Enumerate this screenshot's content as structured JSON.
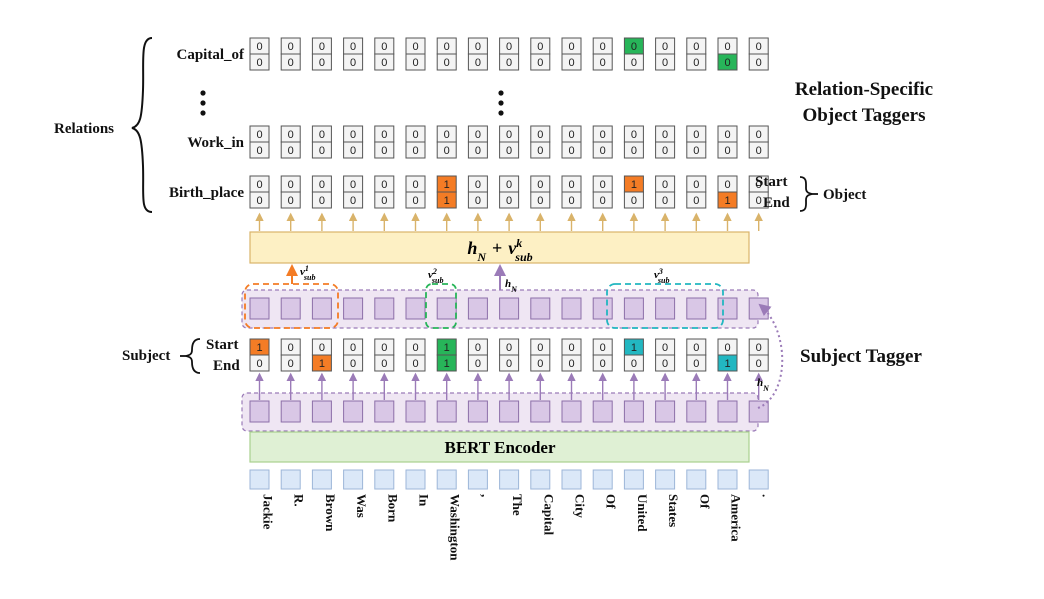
{
  "tokens": [
    "Jackie",
    "R.",
    "Brown",
    "Was",
    "Born",
    "In",
    "Washington",
    ",",
    "The",
    "Capital",
    "City",
    "Of",
    "United",
    "States",
    "Of",
    "America",
    "."
  ],
  "colors": {
    "orange": "#f47c25",
    "green": "#27b559",
    "cyan": "#22b7c1",
    "purple": "#9b7bb8",
    "tan": "#d9b36a",
    "encoder": "#a9d08e"
  },
  "relations_label": "Relations",
  "relation_rows": [
    {
      "name": "Capital_of",
      "start_marks": {
        "12": "green"
      },
      "end_marks": {
        "15": "green"
      },
      "start_digits": {},
      "end_digits": {}
    },
    {
      "name": "Work_in",
      "start_marks": {},
      "end_marks": {},
      "start_digits": {},
      "end_digits": {}
    },
    {
      "name": "Birth_place",
      "start_marks": {
        "6": "orange",
        "12": "orange"
      },
      "end_marks": {
        "6": "orange",
        "15": "orange"
      },
      "start_digits": {
        "6": "1",
        "12": "1"
      },
      "end_digits": {
        "6": "1",
        "15": "1"
      }
    }
  ],
  "start_label": "Start",
  "end_label": "End",
  "object_label": "Object",
  "relation_title_line1": "Relation-Specific",
  "relation_title_line2": "Object Taggers",
  "fusion_label_main": "h",
  "fusion_label_sub": "N",
  "fusion_plus": "+",
  "fusion_v": "v",
  "fusion_v_sub": "sub",
  "fusion_v_sup": "k",
  "v_labels": [
    {
      "base": "v",
      "sup": "1",
      "sub": "sub"
    },
    {
      "base": "v",
      "sup": "2",
      "sub": "sub"
    },
    {
      "base": "v",
      "sup": "3",
      "sub": "sub"
    }
  ],
  "hn_base": "h",
  "hn_sub": "N",
  "subject_label": "Subject",
  "subject_start_marks": {
    "0": "orange",
    "6": "green",
    "12": "cyan"
  },
  "subject_end_marks": {
    "2": "orange",
    "6": "green",
    "15": "cyan"
  },
  "subject_start_digits": {
    "0": "1",
    "6": "1",
    "12": "1"
  },
  "subject_end_digits": {
    "2": "1",
    "6": "1",
    "15": "1"
  },
  "subject_tagger_title": "Subject Tagger",
  "encoder_label": "BERT Encoder",
  "zero": "0"
}
